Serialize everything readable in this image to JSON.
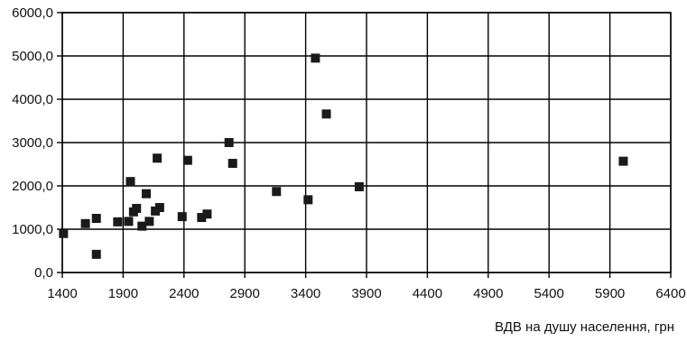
{
  "chart_data": {
    "type": "scatter",
    "title": "",
    "xlabel": "ВДВ на душу населення, грн",
    "ylabel": "",
    "xlim": [
      1400,
      6400
    ],
    "ylim": [
      0,
      6000
    ],
    "x_ticks": [
      1400,
      1900,
      2400,
      2900,
      3400,
      3900,
      4400,
      4900,
      5400,
      5900,
      6400
    ],
    "y_ticks": [
      0,
      1000,
      2000,
      3000,
      4000,
      5000,
      6000
    ],
    "x_tick_labels": [
      "1400",
      "1900",
      "2400",
      "2900",
      "3400",
      "3900",
      "4400",
      "4900",
      "5400",
      "5900",
      "6400"
    ],
    "y_tick_labels": [
      "0,0",
      "1000,0",
      "2000,0",
      "3000,0",
      "4000,0",
      "5000,0",
      "6000,0"
    ],
    "grid": true,
    "legend": "none",
    "marker": "square",
    "marker_color": "#1a1a1a",
    "grid_color": "#000000",
    "points": [
      {
        "x": 1410,
        "y": 900
      },
      {
        "x": 1590,
        "y": 1130
      },
      {
        "x": 1680,
        "y": 1250
      },
      {
        "x": 1680,
        "y": 420
      },
      {
        "x": 1855,
        "y": 1170
      },
      {
        "x": 1945,
        "y": 1180
      },
      {
        "x": 1960,
        "y": 2100
      },
      {
        "x": 1985,
        "y": 1400
      },
      {
        "x": 2010,
        "y": 1480
      },
      {
        "x": 2055,
        "y": 1070
      },
      {
        "x": 2090,
        "y": 1820
      },
      {
        "x": 2115,
        "y": 1180
      },
      {
        "x": 2165,
        "y": 1420
      },
      {
        "x": 2180,
        "y": 2640
      },
      {
        "x": 2200,
        "y": 1500
      },
      {
        "x": 2385,
        "y": 1290
      },
      {
        "x": 2430,
        "y": 2590
      },
      {
        "x": 2545,
        "y": 1270
      },
      {
        "x": 2590,
        "y": 1350
      },
      {
        "x": 2770,
        "y": 3000
      },
      {
        "x": 2800,
        "y": 2520
      },
      {
        "x": 3160,
        "y": 1870
      },
      {
        "x": 3420,
        "y": 1680
      },
      {
        "x": 3480,
        "y": 4950
      },
      {
        "x": 3570,
        "y": 3660
      },
      {
        "x": 3840,
        "y": 1980
      },
      {
        "x": 6010,
        "y": 2570
      }
    ]
  }
}
